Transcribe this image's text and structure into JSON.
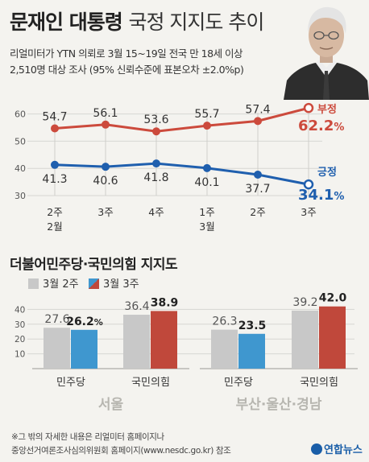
{
  "header": {
    "title_bold": "문재인 대통령",
    "title_rest": "국정 지지도 추이",
    "source_line1": "리얼미터가 YTN 의뢰로 3월 15~19일 전국 만 18세 이상",
    "source_line2": "2,510명 대상 조사 (95% 신뢰수준에 표본오차 ±2.0%p)"
  },
  "footer": {
    "note_line1": "※그 밖의 자세한 내용은 리얼미터 홈페이지나",
    "note_line2": "중앙선거여론조사심의위원회 홈페이지(www.nesdc.go.kr) 참조",
    "logo_text": "연합뉴스"
  },
  "colors": {
    "negative": "#cc4a3c",
    "positive": "#1f5fae",
    "gray": "#c8c8c8",
    "blue_bar": "#3f97cf",
    "red_bar": "#c0483b"
  },
  "chart_data": [
    {
      "type": "line",
      "categories": [
        [
          "2주",
          "2월"
        ],
        [
          "3주",
          ""
        ],
        [
          "4주",
          ""
        ],
        [
          "1주",
          "3월"
        ],
        [
          "2주",
          ""
        ],
        [
          "3주",
          ""
        ]
      ],
      "yticks": [
        30,
        40,
        50,
        60
      ],
      "ylim": [
        30,
        65
      ],
      "series": [
        {
          "name": "부정",
          "values": [
            54.7,
            56.1,
            53.6,
            55.7,
            57.4,
            62.2
          ],
          "labels": [
            "54.7",
            "56.1",
            "53.6",
            "55.7",
            "57.4",
            "62.2%"
          ],
          "color": "#cc4a3c"
        },
        {
          "name": "긍정",
          "values": [
            41.3,
            40.6,
            41.8,
            40.1,
            37.7,
            34.1
          ],
          "labels": [
            "41.3",
            "40.6",
            "41.8",
            "40.1",
            "37.7",
            "34.1%"
          ],
          "color": "#1f5fae"
        }
      ]
    },
    {
      "type": "bar",
      "title": "더불어민주당·국민의힘 지지도",
      "legend": [
        "3월 2주",
        "3월 3주"
      ],
      "yticks": [
        10,
        20,
        30,
        40
      ],
      "ylim": [
        0,
        45
      ],
      "groups": [
        {
          "region": "서울",
          "categories": [
            "민주당",
            "국민의힘"
          ],
          "series": [
            {
              "name": "3월 2주",
              "values": [
                27.6,
                36.4
              ],
              "labels": [
                "27.6",
                "36.4"
              ]
            },
            {
              "name": "3월 3주",
              "values": [
                26.2,
                38.9
              ],
              "labels": [
                "26.2%",
                "38.9"
              ]
            }
          ]
        },
        {
          "region": "부산·울산·경남",
          "categories": [
            "민주당",
            "국민의힘"
          ],
          "series": [
            {
              "name": "3월 2주",
              "values": [
                26.3,
                39.2
              ],
              "labels": [
                "26.3",
                "39.2"
              ]
            },
            {
              "name": "3월 3주",
              "values": [
                23.5,
                42.0
              ],
              "labels": [
                "23.5",
                "42.0"
              ]
            }
          ]
        }
      ]
    }
  ]
}
